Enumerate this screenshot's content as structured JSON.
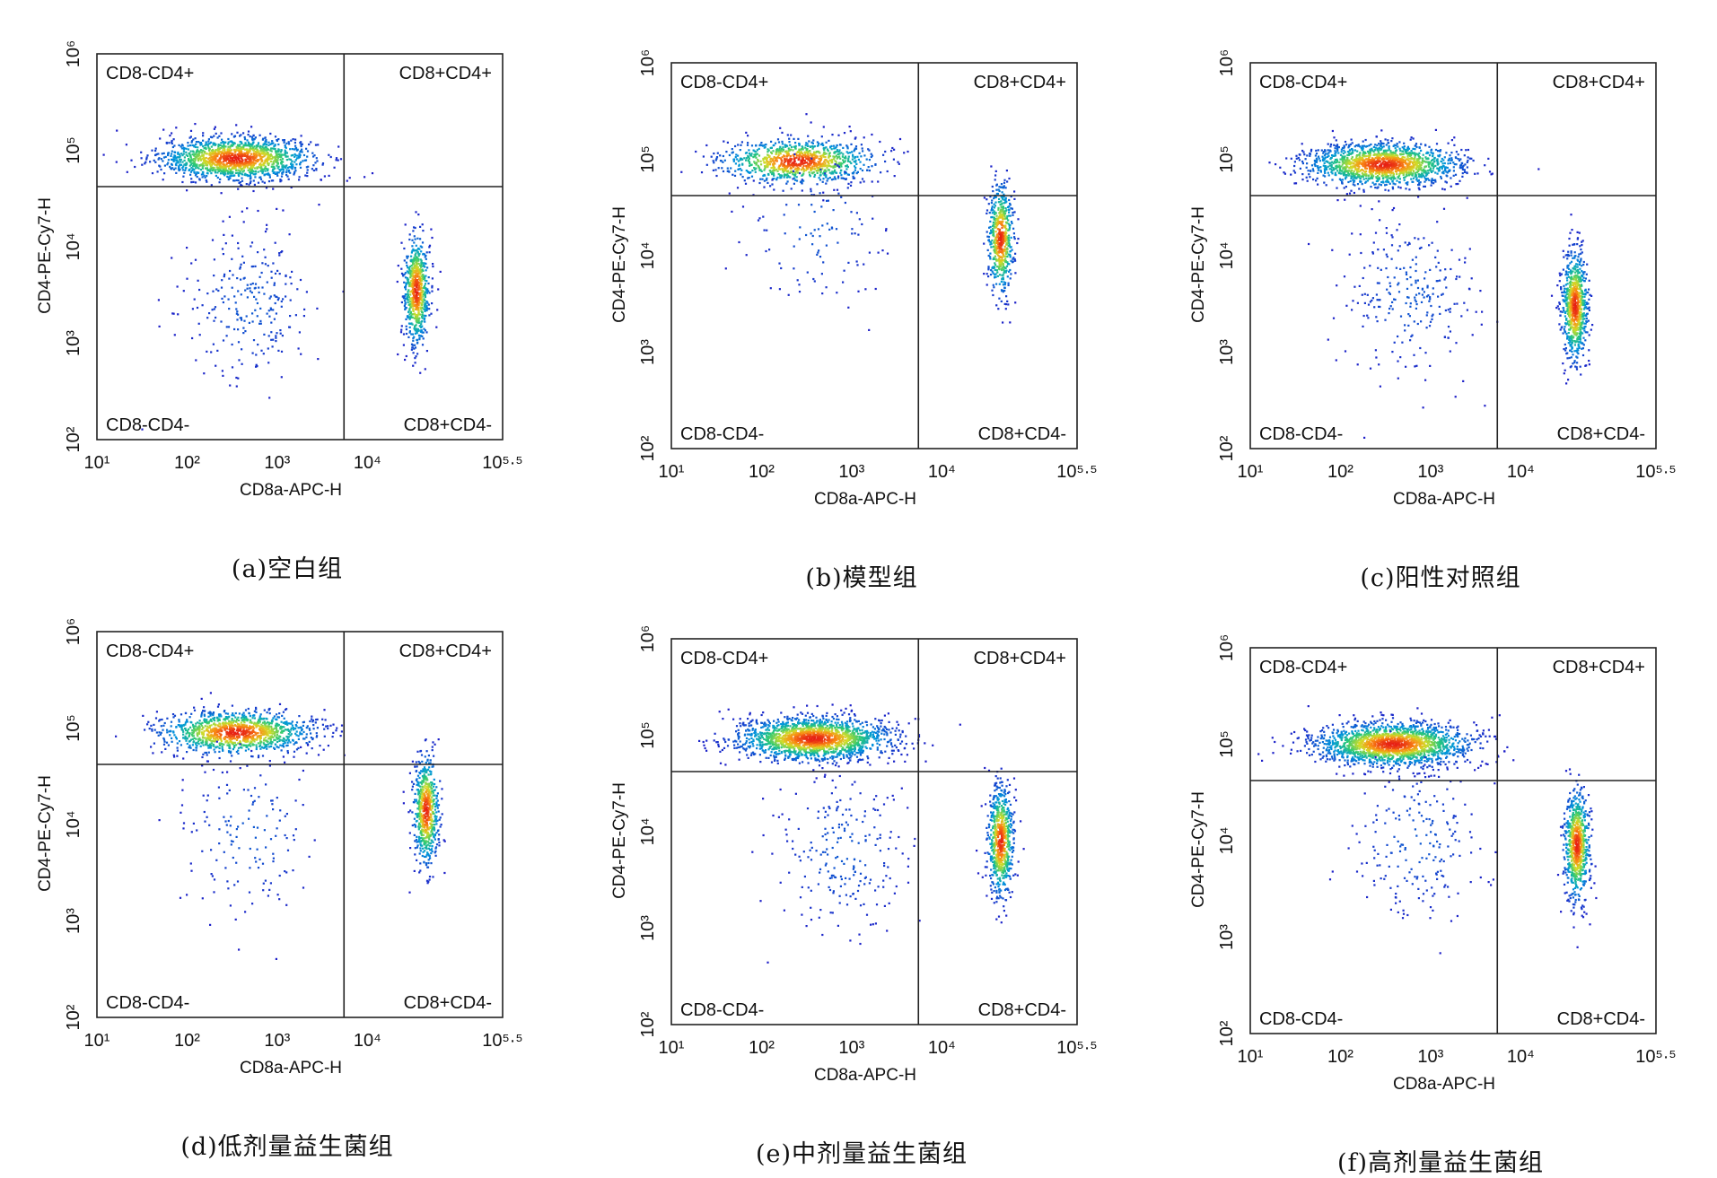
{
  "chart_data": [
    {
      "type": "scatter",
      "caption": "(a)空白组",
      "xlabel": "CD8a-APC-H",
      "ylabel": "CD4-PE-Cy7-H",
      "x_scale": "log",
      "y_scale": "log",
      "xlim": [
        10,
        316228
      ],
      "ylim": [
        100,
        1000000
      ],
      "x_ticks": [
        "10¹",
        "10²",
        "10³",
        "10⁴",
        "10⁵·⁵"
      ],
      "y_ticks": [
        "10²",
        "10³",
        "10⁴",
        "10⁵",
        "10⁶"
      ],
      "quadrant_gate": {
        "x": 5500,
        "y": 42000
      },
      "quadrants": {
        "upper_left": "CD8-CD4+",
        "upper_right": "CD8+CD4+",
        "lower_left": "CD8-CD4-",
        "lower_right": "CD8+CD4-"
      },
      "populations": [
        {
          "name": "CD8-CD4+",
          "center": [
            350,
            82000
          ],
          "n": 1500
        },
        {
          "name": "CD8+CD4-",
          "center": [
            35000,
            3500
          ],
          "n": 700
        },
        {
          "name": "CD8-CD4-",
          "center": [
            500,
            2500
          ],
          "n": 250
        }
      ]
    },
    {
      "type": "scatter",
      "caption": "(b)模型组",
      "xlabel": "CD8a-APC-H",
      "ylabel": "CD4-PE-Cy7-H",
      "x_scale": "log",
      "y_scale": "log",
      "xlim": [
        10,
        316228
      ],
      "ylim": [
        100,
        1000000
      ],
      "x_ticks": [
        "10¹",
        "10²",
        "10³",
        "10⁴",
        "10⁵·⁵"
      ],
      "y_ticks": [
        "10²",
        "10³",
        "10⁴",
        "10⁵",
        "10⁶"
      ],
      "quadrant_gate": {
        "x": 5500,
        "y": 42000
      },
      "quadrants": {
        "upper_left": "CD8-CD4+",
        "upper_right": "CD8+CD4+",
        "lower_left": "CD8-CD4-",
        "lower_right": "CD8+CD4-"
      },
      "populations": [
        {
          "name": "CD8-CD4+",
          "center": [
            250,
            95000
          ],
          "n": 1000
        },
        {
          "name": "CD8+CD4-",
          "center": [
            45000,
            15000
          ],
          "n": 600
        },
        {
          "name": "CD8-CD4-",
          "center": [
            400,
            20000
          ],
          "n": 120
        }
      ]
    },
    {
      "type": "scatter",
      "caption": "(c)阳性对照组",
      "xlabel": "CD8a-APC-H",
      "ylabel": "CD4-PE-Cy7-H",
      "x_scale": "log",
      "y_scale": "log",
      "xlim": [
        10,
        316228
      ],
      "ylim": [
        100,
        1000000
      ],
      "x_ticks": [
        "10¹",
        "10²",
        "10³",
        "10⁴",
        "10⁵·⁵"
      ],
      "y_ticks": [
        "10²",
        "10³",
        "10⁴",
        "10⁵",
        "10⁶"
      ],
      "quadrant_gate": {
        "x": 5500,
        "y": 42000
      },
      "quadrants": {
        "upper_left": "CD8-CD4+",
        "upper_right": "CD8+CD4+",
        "lower_left": "CD8-CD4-",
        "lower_right": "CD8+CD4-"
      },
      "populations": [
        {
          "name": "CD8-CD4+",
          "center": [
            300,
            88000
          ],
          "n": 1600
        },
        {
          "name": "CD8+CD4-",
          "center": [
            40000,
            3000
          ],
          "n": 800
        },
        {
          "name": "CD8-CD4-",
          "center": [
            600,
            4000
          ],
          "n": 250
        }
      ]
    },
    {
      "type": "scatter",
      "caption": "(d)低剂量益生菌组",
      "xlabel": "CD8a-APC-H",
      "ylabel": "CD4-PE-Cy7-H",
      "x_scale": "log",
      "y_scale": "log",
      "xlim": [
        10,
        316228
      ],
      "ylim": [
        100,
        1000000
      ],
      "x_ticks": [
        "10¹",
        "10²",
        "10³",
        "10⁴",
        "10⁵·⁵"
      ],
      "y_ticks": [
        "10²",
        "10³",
        "10⁴",
        "10⁵",
        "10⁶"
      ],
      "quadrant_gate": {
        "x": 5500,
        "y": 42000
      },
      "quadrants": {
        "upper_left": "CD8-CD4+",
        "upper_right": "CD8+CD4+",
        "lower_left": "CD8-CD4-",
        "lower_right": "CD8+CD4-"
      },
      "populations": [
        {
          "name": "CD8-CD4+",
          "center": [
            350,
            90000
          ],
          "n": 1200
        },
        {
          "name": "CD8+CD4-",
          "center": [
            45000,
            14000
          ],
          "n": 650
        },
        {
          "name": "CD8-CD4-",
          "center": [
            500,
            8000
          ],
          "n": 150
        }
      ]
    },
    {
      "type": "scatter",
      "caption": "(e)中剂量益生菌组",
      "xlabel": "CD8a-APC-H",
      "ylabel": "CD4-PE-Cy7-H",
      "x_scale": "log",
      "y_scale": "log",
      "xlim": [
        10,
        316228
      ],
      "ylim": [
        100,
        1000000
      ],
      "x_ticks": [
        "10¹",
        "10²",
        "10³",
        "10⁴",
        "10⁵·⁵"
      ],
      "y_ticks": [
        "10²",
        "10³",
        "10⁴",
        "10⁵",
        "10⁶"
      ],
      "quadrant_gate": {
        "x": 5500,
        "y": 42000
      },
      "quadrants": {
        "upper_left": "CD8-CD4+",
        "upper_right": "CD8+CD4+",
        "lower_left": "CD8-CD4-",
        "lower_right": "CD8+CD4-"
      },
      "populations": [
        {
          "name": "CD8-CD4+",
          "center": [
            380,
            92000
          ],
          "n": 1800
        },
        {
          "name": "CD8+CD4-",
          "center": [
            45000,
            8000
          ],
          "n": 700
        },
        {
          "name": "CD8-CD4-",
          "center": [
            800,
            6000
          ],
          "n": 220
        }
      ]
    },
    {
      "type": "scatter",
      "caption": "(f)高剂量益生菌组",
      "xlabel": "CD8a-APC-H",
      "ylabel": "CD4-PE-Cy7-H",
      "x_scale": "log",
      "y_scale": "log",
      "xlim": [
        10,
        316228
      ],
      "ylim": [
        100,
        1000000
      ],
      "x_ticks": [
        "10¹",
        "10²",
        "10³",
        "10⁴",
        "10⁵·⁵"
      ],
      "y_ticks": [
        "10²",
        "10³",
        "10⁴",
        "10⁵",
        "10⁶"
      ],
      "quadrant_gate": {
        "x": 5500,
        "y": 42000
      },
      "quadrants": {
        "upper_left": "CD8-CD4+",
        "upper_right": "CD8+CD4+",
        "lower_left": "CD8-CD4-",
        "lower_right": "CD8+CD4-"
      },
      "populations": [
        {
          "name": "CD8-CD4+",
          "center": [
            380,
            100000
          ],
          "n": 1800
        },
        {
          "name": "CD8+CD4-",
          "center": [
            42000,
            9000
          ],
          "n": 750
        },
        {
          "name": "CD8-CD4-",
          "center": [
            700,
            10000
          ],
          "n": 200
        }
      ]
    }
  ]
}
